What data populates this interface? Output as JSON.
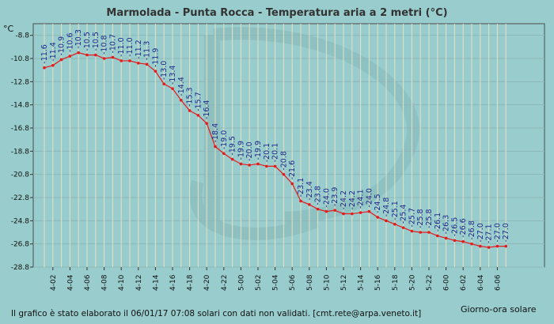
{
  "chart_data": {
    "type": "line",
    "title": "Marmolada - Punta Rocca - Temperatura aria a 2 metri (°C)",
    "ylabel": "°C",
    "xlabel": "Giorno-ora solare",
    "ylim": [
      -28.8,
      -7.8
    ],
    "yticks": [
      "-8.8",
      "-10.8",
      "-12.8",
      "-14.8",
      "-16.8",
      "-18.8",
      "-20.8",
      "-22.8",
      "-24.8",
      "-26.8",
      "-28.8"
    ],
    "xtick_labels": [
      "4-02",
      "4-04",
      "4-06",
      "4-08",
      "4-10",
      "4-12",
      "4-14",
      "4-16",
      "4-18",
      "4-20",
      "4-22",
      "5-00",
      "5-02",
      "5-04",
      "5-06",
      "5-08",
      "5-10",
      "5-12",
      "5-14",
      "5-16",
      "5-18",
      "5-20",
      "5-22",
      "6-00",
      "6-02",
      "6-04",
      "6-06"
    ],
    "grid": true,
    "series_color": "#e41a1c",
    "series": [
      {
        "values": [
          -11.6,
          -11.4,
          -10.9,
          -10.6,
          -10.3,
          -10.5,
          -10.5,
          -10.8,
          -10.7,
          -11.0,
          -11.0,
          -11.2,
          -11.3,
          -11.9,
          -13.0,
          -13.4,
          -14.4,
          -15.3,
          -15.7,
          -16.4,
          -18.4,
          -19.0,
          -19.5,
          -19.9,
          -20.0,
          -19.9,
          -20.1,
          -20.1,
          -20.8,
          -21.6,
          -23.1,
          -23.4,
          -23.8,
          -24.0,
          -23.9,
          -24.2,
          -24.2,
          -24.1,
          -24.0,
          -24.5,
          -24.8,
          -25.1,
          -25.4,
          -25.7,
          -25.8,
          -25.8,
          -26.1,
          -26.3,
          -26.5,
          -26.6,
          -26.8,
          -27.0,
          -27.1,
          -27.0,
          -27.0
        ]
      }
    ]
  },
  "footer_text": "Il grafico è stato elaborato il 06/01/17 07:08 solari con dati non validati. [cmt.rete@arpa.veneto.it]"
}
